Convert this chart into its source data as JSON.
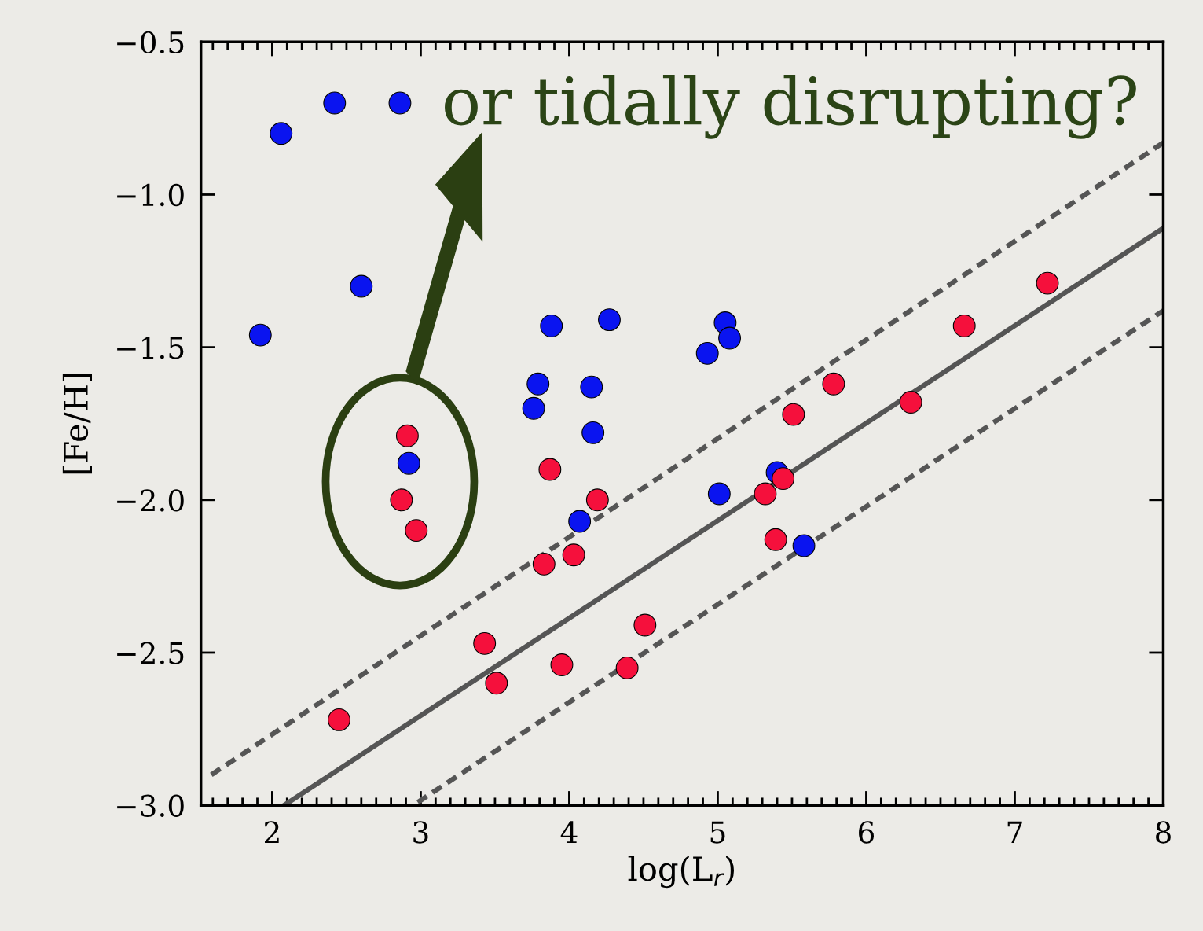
{
  "chart_data": {
    "type": "scatter",
    "xlabel": "log(L$_{r}$)",
    "ylabel": "[Fe/H]",
    "xlim": [
      1.52,
      8
    ],
    "ylim": [
      -3.0,
      -0.5
    ],
    "xticks": [
      2,
      3,
      4,
      5,
      6,
      7,
      8
    ],
    "yticks": [
      {
        "value": -3.0,
        "label": "−3.0"
      },
      {
        "value": -2.5,
        "label": "−2.5"
      },
      {
        "value": -2.0,
        "label": "−2.0"
      },
      {
        "value": -1.5,
        "label": "−1.5"
      },
      {
        "value": -1.0,
        "label": "−1.0"
      },
      {
        "value": -0.5,
        "label": "−0.5"
      }
    ],
    "marker": "circle",
    "grid": false,
    "legend": false,
    "annotations": [
      "or tidally disrupting?"
    ],
    "series": [
      {
        "type": "line",
        "marker": "none",
        "color": "#555555",
        "line_style": "dashed",
        "x": [
          1.59,
          8
        ],
        "values": [
          -2.9,
          -0.83
        ]
      },
      {
        "type": "line",
        "marker": "none",
        "color": "#555555",
        "line_style": "solid",
        "x": [
          2.08,
          8
        ],
        "values": [
          -3.0,
          -1.11
        ]
      },
      {
        "type": "line",
        "marker": "none",
        "color": "#555555",
        "line_style": "dashed",
        "x": [
          2.98,
          8
        ],
        "values": [
          -2.99,
          -1.38
        ]
      },
      {
        "type": "scatter",
        "color": "#0a14f0",
        "x": [
          2.06,
          2.42,
          2.86,
          2.6,
          1.92,
          2.92,
          3.79,
          3.76,
          3.88,
          4.27,
          4.15,
          4.16,
          4.07,
          4.93,
          5.05,
          5.08,
          5.01,
          5.4,
          5.58
        ],
        "values": [
          -0.8,
          -0.7,
          -0.7,
          -1.3,
          -1.46,
          -1.88,
          -1.62,
          -1.7,
          -1.43,
          -1.41,
          -1.63,
          -1.78,
          -2.07,
          -1.52,
          -1.42,
          -1.47,
          -1.98,
          -1.91,
          -2.15
        ]
      },
      {
        "type": "scatter",
        "color": "#f5103c",
        "x": [
          2.91,
          2.87,
          2.97,
          3.87,
          4.19,
          3.83,
          4.03,
          3.43,
          3.51,
          3.95,
          4.39,
          4.51,
          2.45,
          5.32,
          5.44,
          5.39,
          5.51,
          5.78,
          6.3,
          6.66,
          7.22
        ],
        "values": [
          -1.79,
          -2.0,
          -2.1,
          -1.9,
          -2.0,
          -2.21,
          -2.18,
          -2.47,
          -2.6,
          -2.54,
          -2.55,
          -2.41,
          -2.72,
          -1.98,
          -1.93,
          -2.13,
          -1.72,
          -1.62,
          -1.68,
          -1.43,
          -1.29
        ]
      }
    ]
  }
}
